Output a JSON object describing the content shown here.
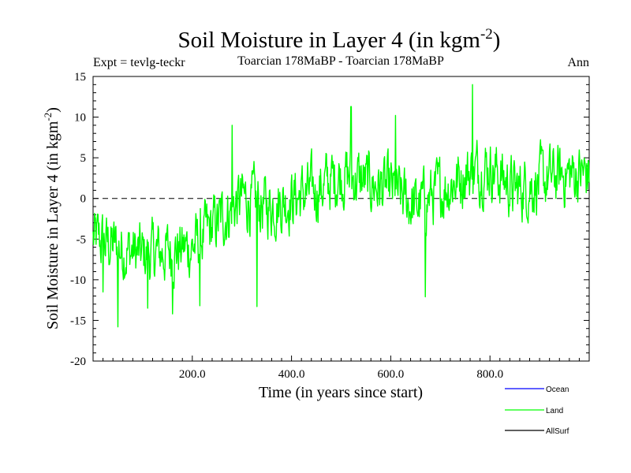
{
  "chart_data": {
    "type": "line",
    "title_main": "Soil Moisture in Layer 4 (in kgm",
    "title_sup": "-2",
    "title_close": ")",
    "subtitle_left": "Expt = tevlg-teckr",
    "subtitle_center": "Toarcian 178MaBP - Toarcian 178MaBP",
    "subtitle_right": "Ann",
    "xlabel": "Time (in years since start)",
    "ylabel_main": "Soil Moisture in Layer 4 (in kgm",
    "ylabel_sup": "-2",
    "ylabel_close": ")",
    "xlim": [
      0,
      1000
    ],
    "ylim": [
      -20,
      15
    ],
    "x_ticks": [
      200,
      400,
      600,
      800
    ],
    "x_tick_labels": [
      "200.0",
      "400.0",
      "600.0",
      "800.0"
    ],
    "y_ticks": [
      -20,
      -15,
      -10,
      -5,
      0,
      5,
      10,
      15
    ],
    "y_tick_labels": [
      "-20",
      "-15",
      "-10",
      "-5",
      "0",
      "5",
      "10",
      "15"
    ],
    "zero_line": true,
    "legend": [
      {
        "name": "Ocean",
        "color": "#0000ff"
      },
      {
        "name": "Land",
        "color": "#00ff00"
      },
      {
        "name": "AllSurf",
        "color": "#000000"
      }
    ],
    "series": [
      {
        "name": "Land",
        "color": "#00ff00",
        "trend_x": [
          0,
          50,
          100,
          150,
          200,
          250,
          300,
          350,
          400,
          450,
          500,
          550,
          600,
          650,
          700,
          750,
          800,
          850,
          900,
          950,
          1000
        ],
        "trend_y": [
          -5,
          -6,
          -7,
          -6.5,
          -6,
          -3,
          0,
          -1,
          0,
          1,
          3,
          2,
          1,
          -1,
          1,
          3,
          4,
          1,
          2,
          3,
          3
        ],
        "events": [
          {
            "x": 50,
            "y": -15.8
          },
          {
            "x": 110,
            "y": -13.5
          },
          {
            "x": 160,
            "y": -14.2
          },
          {
            "x": 215,
            "y": -13.2
          },
          {
            "x": 330,
            "y": -13.3
          },
          {
            "x": 520,
            "y": 11.3
          },
          {
            "x": 670,
            "y": -12.1
          },
          {
            "x": 765,
            "y": 14.0
          },
          {
            "x": 610,
            "y": 10.2
          },
          {
            "x": 280,
            "y": 9.0
          },
          {
            "x": 20,
            "y": -11.5
          }
        ],
        "noise_amplitude": 3.0,
        "n_points": 1000
      },
      {
        "name": "Ocean",
        "color": "#0000ff",
        "values": []
      },
      {
        "name": "AllSurf",
        "color": "#000000",
        "values": []
      }
    ]
  }
}
